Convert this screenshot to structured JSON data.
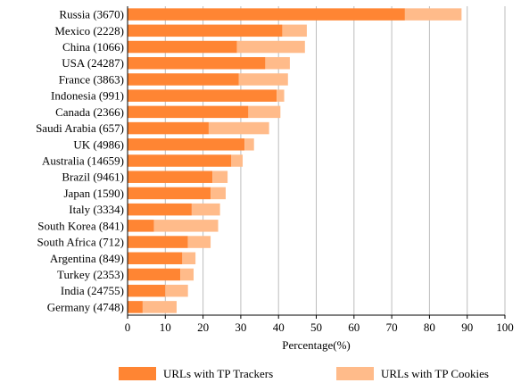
{
  "chart_data": {
    "type": "bar",
    "orientation": "horizontal",
    "stacked": true,
    "title": "",
    "xlabel": "Percentage(%)",
    "ylabel": "",
    "xlim": [
      0,
      100
    ],
    "xticks": [
      0,
      10,
      20,
      30,
      40,
      50,
      60,
      70,
      80,
      90,
      100
    ],
    "grid": "vertical",
    "legend_position": "bottom",
    "categories": [
      "Russia (3670)",
      "Mexico (2228)",
      "China (1066)",
      "USA (24287)",
      "France (3863)",
      "Indonesia (991)",
      "Canada (2366)",
      "Saudi Arabia (657)",
      "UK (4986)",
      "Australia (14659)",
      "Brazil (9461)",
      "Japan (1590)",
      "Italy (3334)",
      "South Korea (841)",
      "South Africa (712)",
      "Argentina (849)",
      "Turkey (2353)",
      "India (24755)",
      "Germany (4748)"
    ],
    "series": [
      {
        "name": "URLs with TP Trackers",
        "color": "#ff8533",
        "values": [
          73.5,
          41,
          29,
          36.5,
          29.5,
          39.5,
          32,
          21.5,
          31,
          27.5,
          22.5,
          22,
          17,
          7,
          16,
          14.5,
          14,
          10,
          4
        ]
      },
      {
        "name": "URLs with TP Cookies",
        "color": "#ffbb8a",
        "values": [
          15,
          6.5,
          18,
          6.5,
          13,
          2,
          8.5,
          16,
          2.5,
          3,
          4,
          4,
          7.5,
          17,
          6,
          3.5,
          3.5,
          6,
          9
        ]
      }
    ]
  }
}
